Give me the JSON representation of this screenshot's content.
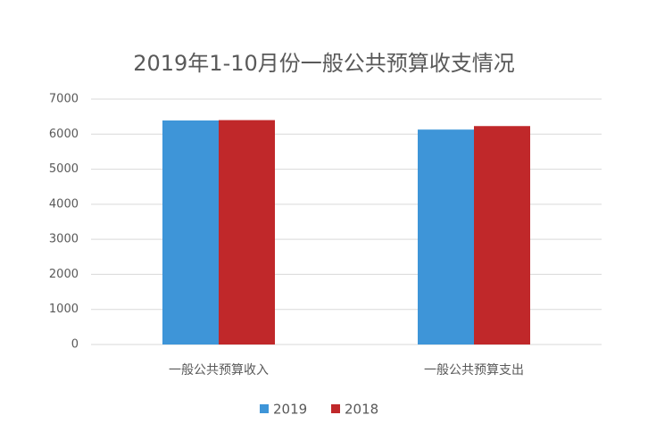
{
  "chart_data": {
    "type": "bar",
    "title": "2019年1-10月份一般公共预算收支情况",
    "categories": [
      "一般公共预算收入",
      "一般公共预算支出"
    ],
    "series": [
      {
        "name": "2019",
        "color": "#3e95d8",
        "values": [
          6390,
          6130
        ]
      },
      {
        "name": "2018",
        "color": "#c0282a",
        "values": [
          6400,
          6230
        ]
      }
    ],
    "ylim": [
      0,
      7000
    ],
    "yticks": [
      0,
      1000,
      2000,
      3000,
      4000,
      5000,
      6000,
      7000
    ],
    "grid": true,
    "legend": "bottom"
  }
}
